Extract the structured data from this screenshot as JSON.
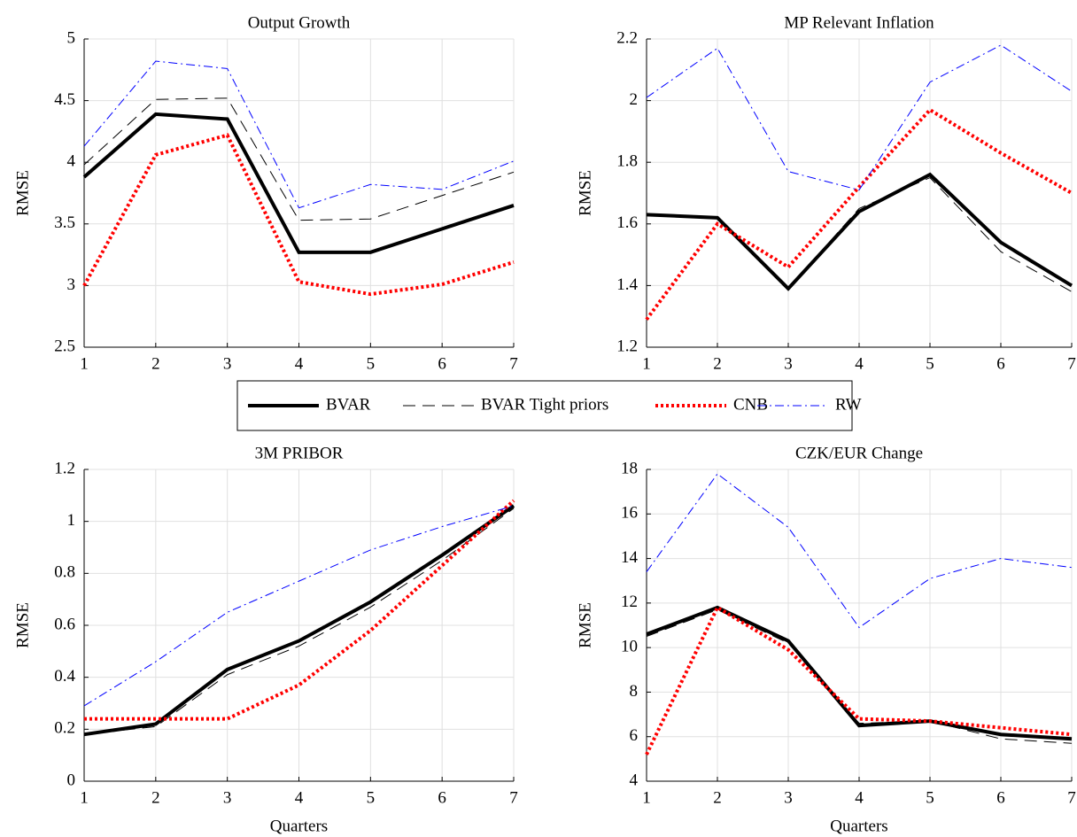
{
  "legend": {
    "entries": [
      {
        "name": "BVAR",
        "color": "#000000",
        "width": 4,
        "dash": "none"
      },
      {
        "name": "BVAR Tight priors",
        "color": "#000000",
        "width": 1,
        "dash": "14 8"
      },
      {
        "name": "CNB",
        "color": "#ff0000",
        "width": 4,
        "dash": "3 3"
      },
      {
        "name": "RW",
        "color": "#0000ff",
        "width": 1,
        "dash": "10 4 2 4"
      }
    ]
  },
  "chart_data": [
    {
      "type": "line",
      "title": "Output Growth",
      "ylabel": "RMSE",
      "x": [
        1,
        2,
        3,
        4,
        5,
        6,
        7
      ],
      "xlim": [
        1,
        7
      ],
      "xticks": [
        1,
        2,
        3,
        4,
        5,
        6,
        7
      ],
      "ylim": [
        2.5,
        5
      ],
      "yticks": [
        2.5,
        3,
        3.5,
        4,
        4.5,
        5
      ],
      "grid": true,
      "series": [
        {
          "values": [
            3.88,
            4.39,
            4.35,
            3.27,
            3.27,
            3.46,
            3.65
          ]
        },
        {
          "values": [
            3.98,
            4.51,
            4.52,
            3.53,
            3.54,
            3.73,
            3.92
          ]
        },
        {
          "values": [
            3.0,
            4.06,
            4.22,
            3.03,
            2.93,
            3.01,
            3.19
          ]
        },
        {
          "values": [
            4.13,
            4.82,
            4.76,
            3.63,
            3.82,
            3.78,
            4.01
          ]
        }
      ]
    },
    {
      "type": "line",
      "title": "MP Relevant Inflation",
      "ylabel": "RMSE",
      "x": [
        1,
        2,
        3,
        4,
        5,
        6,
        7
      ],
      "xlim": [
        1,
        7
      ],
      "xticks": [
        1,
        2,
        3,
        4,
        5,
        6,
        7
      ],
      "ylim": [
        1.2,
        2.2
      ],
      "yticks": [
        1.2,
        1.4,
        1.6,
        1.8,
        2,
        2.2
      ],
      "grid": true,
      "series": [
        {
          "values": [
            1.63,
            1.62,
            1.39,
            1.64,
            1.76,
            1.54,
            1.4
          ]
        },
        {
          "values": [
            1.63,
            1.62,
            1.39,
            1.65,
            1.75,
            1.51,
            1.38
          ]
        },
        {
          "values": [
            1.29,
            1.6,
            1.46,
            1.72,
            1.97,
            1.83,
            1.7
          ]
        },
        {
          "values": [
            2.01,
            2.17,
            1.77,
            1.71,
            2.06,
            2.18,
            2.03
          ]
        }
      ]
    },
    {
      "type": "line",
      "title": "3M PRIBOR",
      "ylabel": "RMSE",
      "xlabel": "Quarters",
      "x": [
        1,
        2,
        3,
        4,
        5,
        6,
        7
      ],
      "xlim": [
        1,
        7
      ],
      "xticks": [
        1,
        2,
        3,
        4,
        5,
        6,
        7
      ],
      "ylim": [
        0,
        1.2
      ],
      "yticks": [
        0,
        0.2,
        0.4,
        0.6,
        0.8,
        1,
        1.2
      ],
      "grid": true,
      "series": [
        {
          "values": [
            0.18,
            0.22,
            0.43,
            0.54,
            0.69,
            0.87,
            1.06
          ]
        },
        {
          "values": [
            0.18,
            0.21,
            0.41,
            0.52,
            0.67,
            0.85,
            1.05
          ]
        },
        {
          "values": [
            0.24,
            0.24,
            0.24,
            0.37,
            0.58,
            0.83,
            1.08
          ]
        },
        {
          "values": [
            0.29,
            0.46,
            0.65,
            0.77,
            0.89,
            0.98,
            1.06
          ]
        }
      ]
    },
    {
      "type": "line",
      "title": "CZK/EUR Change",
      "ylabel": "RMSE",
      "xlabel": "Quarters",
      "x": [
        1,
        2,
        3,
        4,
        5,
        6,
        7
      ],
      "xlim": [
        1,
        7
      ],
      "xticks": [
        1,
        2,
        3,
        4,
        5,
        6,
        7
      ],
      "ylim": [
        4,
        18
      ],
      "yticks": [
        4,
        6,
        8,
        10,
        12,
        14,
        16,
        18
      ],
      "grid": true,
      "series": [
        {
          "values": [
            10.6,
            11.8,
            10.3,
            6.5,
            6.7,
            6.1,
            5.9
          ]
        },
        {
          "values": [
            10.5,
            11.7,
            10.2,
            6.6,
            6.7,
            5.9,
            5.7
          ]
        },
        {
          "values": [
            5.2,
            11.8,
            9.9,
            6.8,
            6.7,
            6.4,
            6.1
          ]
        },
        {
          "values": [
            13.4,
            17.8,
            15.4,
            10.9,
            13.1,
            14.0,
            13.6
          ]
        }
      ]
    }
  ]
}
